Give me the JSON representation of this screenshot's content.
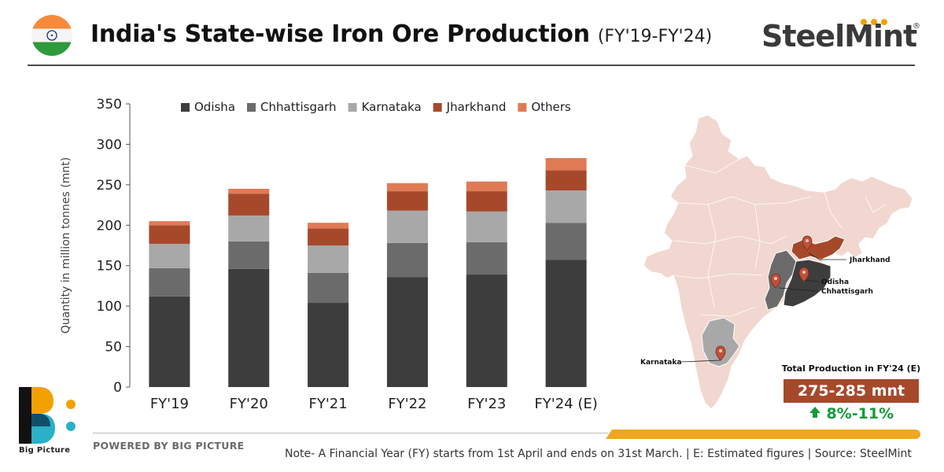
{
  "header": {
    "title": "India's State-wise Iron Ore Production",
    "subtitle": "(FY'19-FY'24)",
    "brand": "SteelMint",
    "brand_reg": "®"
  },
  "chart_data": {
    "type": "bar",
    "stacked": true,
    "categories": [
      "FY'19",
      "FY'20",
      "FY'21",
      "FY'22",
      "FY'23",
      "FY'24 (E)"
    ],
    "series": [
      {
        "name": "Odisha",
        "color": "#3d3d3d",
        "values": [
          112,
          146,
          104,
          136,
          139,
          157
        ]
      },
      {
        "name": "Chhattisgarh",
        "color": "#6b6b6b",
        "values": [
          35,
          34,
          37,
          42,
          40,
          46
        ]
      },
      {
        "name": "Karnataka",
        "color": "#a8a8a8",
        "values": [
          30,
          32,
          34,
          40,
          38,
          40
        ]
      },
      {
        "name": "Jharkhand",
        "color": "#a6492b",
        "values": [
          23,
          27,
          21,
          24,
          25,
          25
        ]
      },
      {
        "name": "Others",
        "color": "#e07a55",
        "values": [
          5,
          6,
          7,
          10,
          12,
          15
        ]
      }
    ],
    "ylabel": "Quantity in million tonnes (mnt)",
    "ylim": [
      0,
      350
    ],
    "yticks": [
      0,
      50,
      100,
      150,
      200,
      250,
      300,
      350
    ],
    "legend_position": "top",
    "grid": false
  },
  "map": {
    "labels": {
      "jharkhand": "Jharkhand",
      "odisha": "Odisha",
      "chhattisgarh": "Chhattisgarh",
      "karnataka": "Karnataka"
    },
    "colors": {
      "india": "#f1d7cf",
      "jharkhand": "#a6492b",
      "odisha": "#3d3d3d",
      "chhattisgarh": "#6b6b6b",
      "karnataka": "#a8a8a8"
    }
  },
  "summary": {
    "label": "Total Production in FY'24 (E)",
    "value": "275-285 mnt",
    "growth": "8%-11%"
  },
  "footer": {
    "logo_label": "Big Picture",
    "powered": "POWERED BY BIG PICTURE",
    "note": "Note- A Financial Year (FY) starts from 1st April and ends on 31st March. | E: Estimated figures | Source: SteelMint"
  }
}
